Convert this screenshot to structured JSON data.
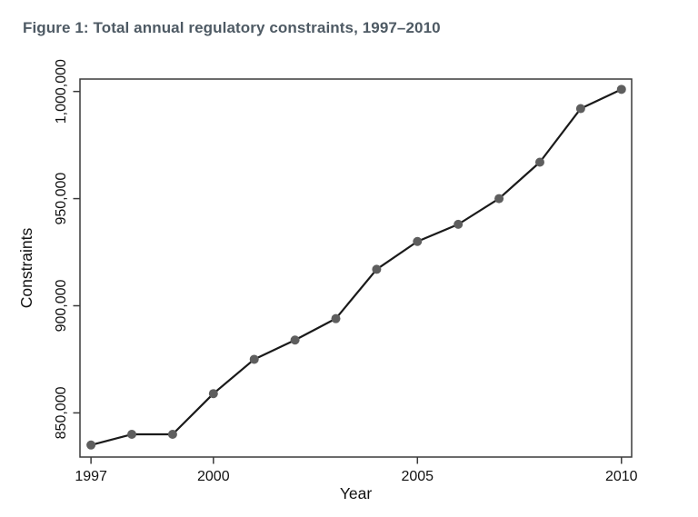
{
  "chart_data": {
    "type": "line",
    "title": "Figure 1: Total annual regulatory constraints, 1997–2010",
    "xlabel": "Year",
    "ylabel": "Constraints",
    "x": [
      1997,
      1998,
      1999,
      2000,
      2001,
      2002,
      2003,
      2004,
      2005,
      2006,
      2007,
      2008,
      2009,
      2010
    ],
    "values": [
      835000,
      840000,
      840000,
      859000,
      875000,
      884000,
      894000,
      917000,
      930000,
      938000,
      950000,
      967000,
      992000,
      1001000
    ],
    "series_name": "Total annual regulatory constraints",
    "xticks": [
      1997,
      2000,
      2005,
      2010
    ],
    "xtick_labels": [
      "1997",
      "2000",
      "2005",
      "2010"
    ],
    "yticks": [
      850000,
      900000,
      950000,
      1000000
    ],
    "ytick_labels": [
      "850,000",
      "900,000",
      "950,000",
      "1,000,000"
    ],
    "xlim": [
      1996.73,
      2010.25
    ],
    "ylim": [
      829400,
      1005800
    ],
    "grid": false,
    "legend": null,
    "marker": "circle",
    "colors": {
      "line": "#1a1a1a",
      "marker": "#5e5e5e",
      "axis": "#3a3a3a",
      "tick_text": "#111111",
      "title_text": "#4e5a64"
    }
  }
}
